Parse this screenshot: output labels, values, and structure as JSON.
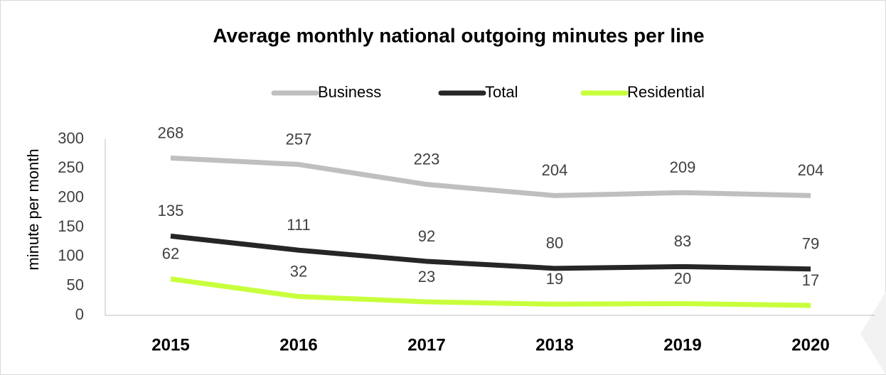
{
  "chart_data": {
    "type": "line",
    "title": "Average monthly national outgoing minutes per line",
    "y_label": "minute per month",
    "categories": [
      "2015",
      "2016",
      "2017",
      "2018",
      "2019",
      "2020"
    ],
    "series": [
      {
        "name": "Business",
        "color": "#bfbfbf",
        "values": [
          268,
          257,
          223,
          204,
          209,
          204
        ]
      },
      {
        "name": "Total",
        "color": "#262626",
        "values": [
          135,
          111,
          92,
          80,
          83,
          79
        ]
      },
      {
        "name": "Residential",
        "color": "#c8ff3c",
        "values": [
          62,
          32,
          23,
          19,
          20,
          17
        ]
      }
    ],
    "ylim": [
      0,
      300
    ],
    "yticks": [
      0,
      50,
      100,
      150,
      200,
      250,
      300
    ],
    "legend": "top",
    "grid": false,
    "data_labels": true
  }
}
